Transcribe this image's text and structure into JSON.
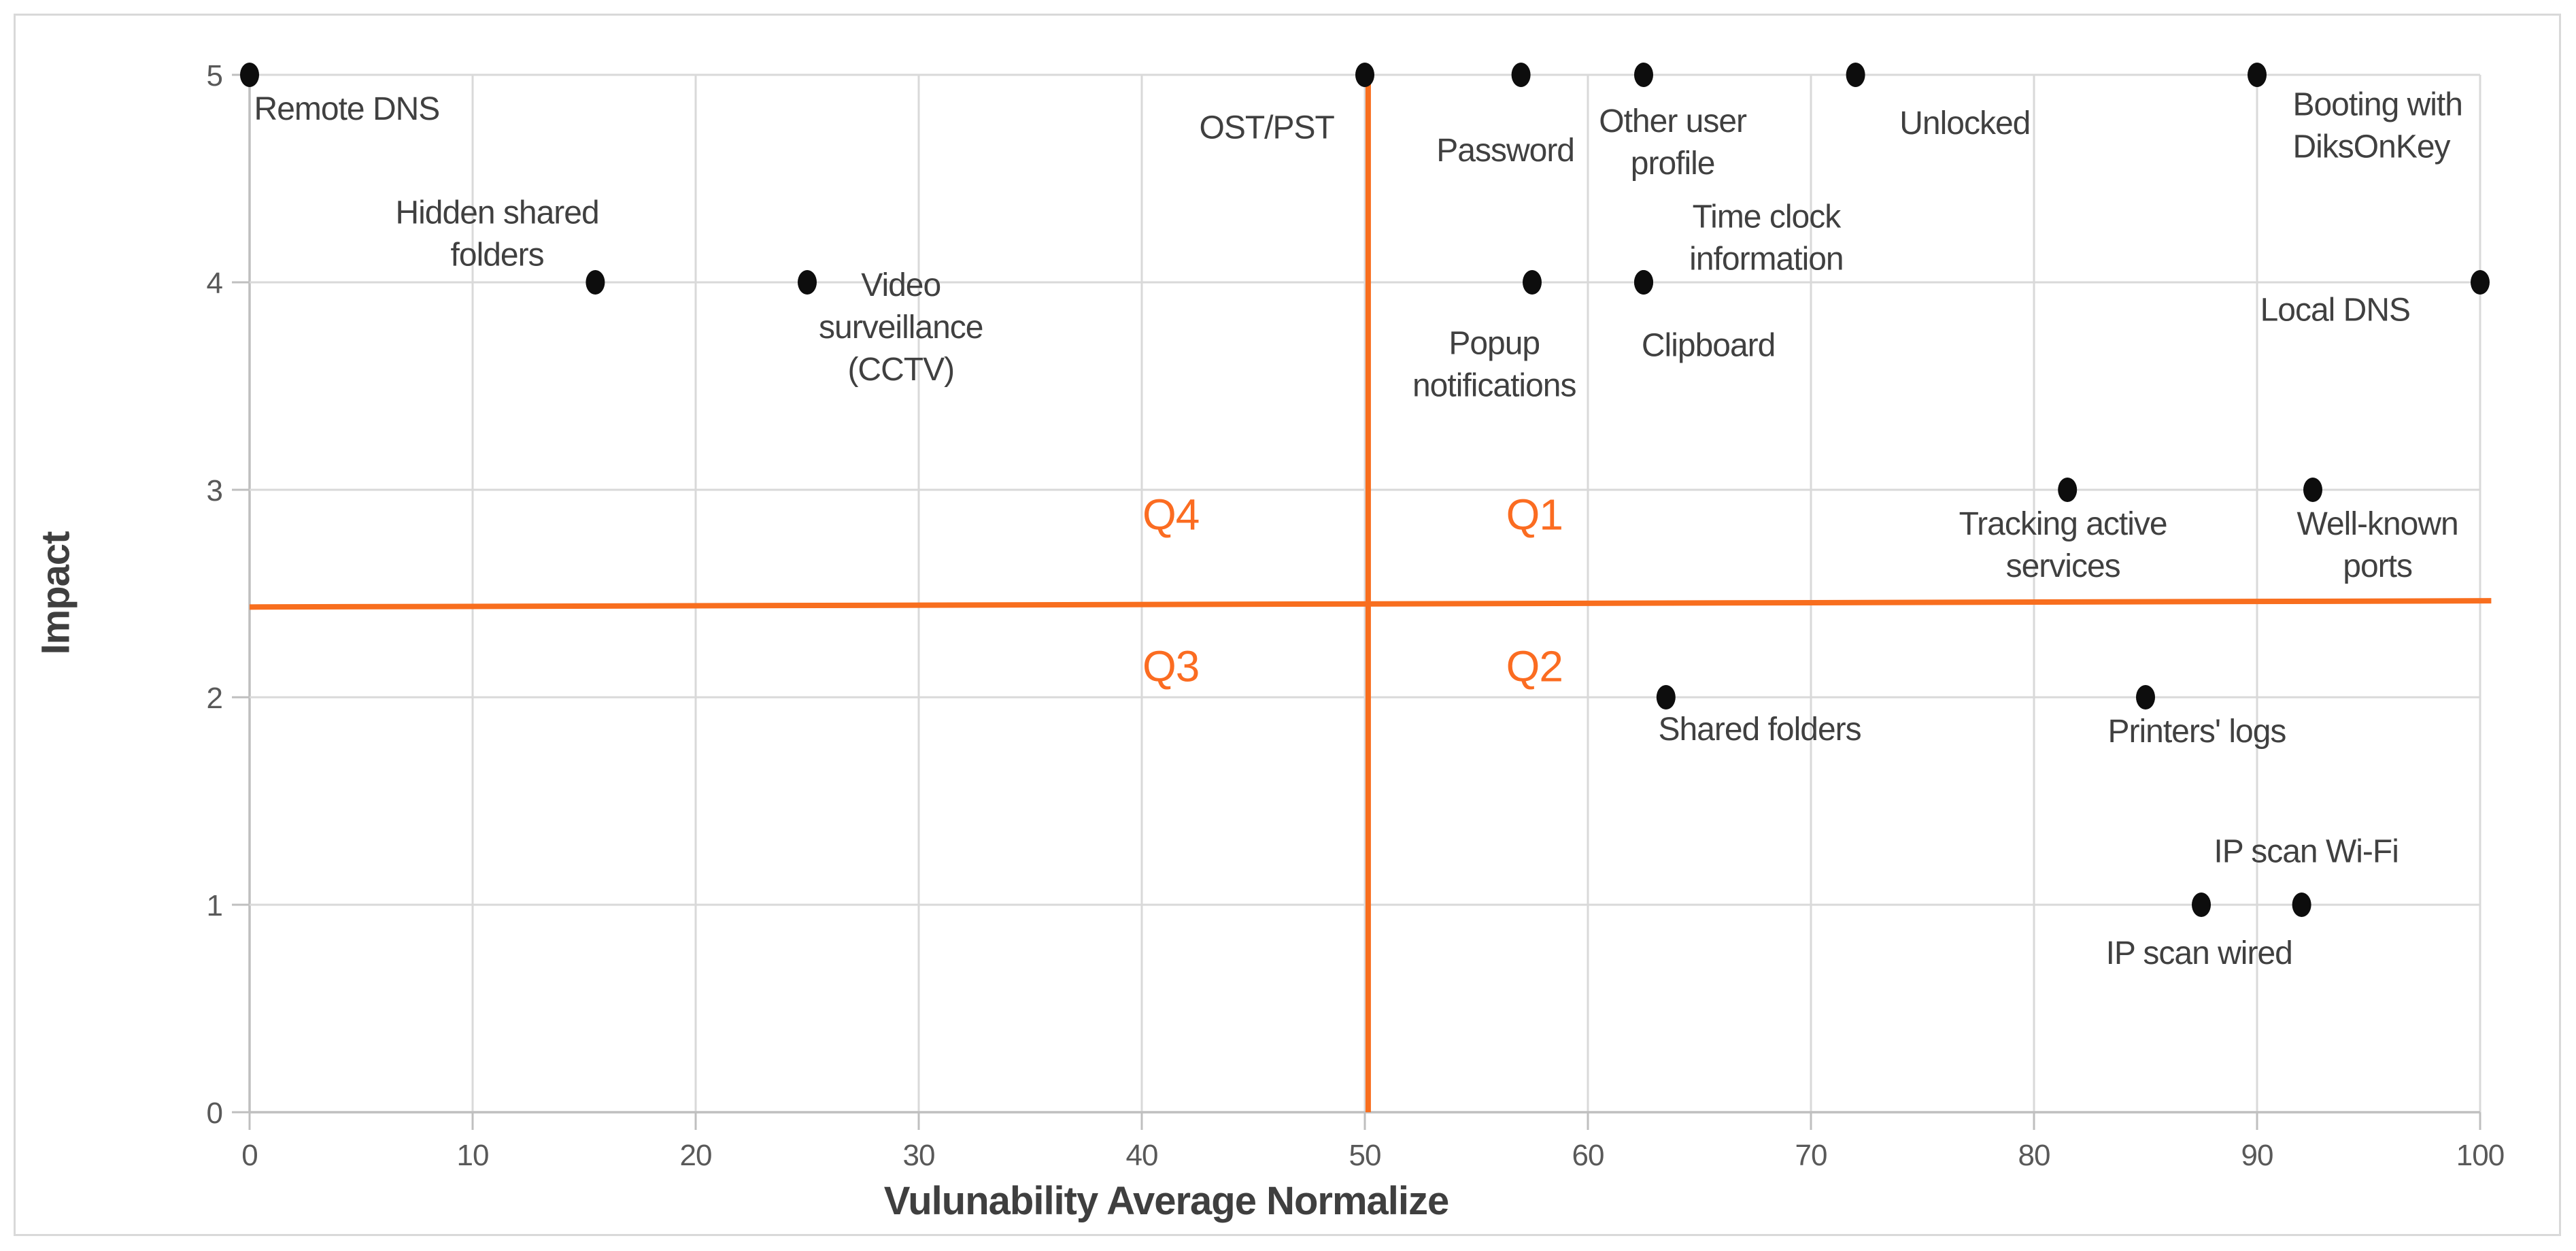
{
  "chart_data": {
    "type": "scatter",
    "title": "",
    "xlabel": "Vulunability Average Normalize",
    "ylabel": "Impact",
    "xlim": [
      0,
      100
    ],
    "ylim": [
      0,
      5
    ],
    "x_ticks": [
      "0",
      "10",
      "20",
      "30",
      "40",
      "50",
      "60",
      "70",
      "80",
      "90",
      "100"
    ],
    "y_ticks": [
      "0",
      "1",
      "2",
      "3",
      "4",
      "5"
    ],
    "grid": true,
    "legend": "none",
    "colors": {
      "marker": "#0d0d0d",
      "accent_orange": "#f86e1e",
      "quadrant_text": "#fb6c21",
      "gridline": "#d9d9d9",
      "axis_line": "#bfbfbf",
      "tick_text": "#595959",
      "label_text": "#404040"
    },
    "points": [
      {
        "name": "Remote DNS",
        "x": 0,
        "y": 5,
        "label": {
          "lines": [
            "Remote DNS"
          ],
          "x": 0.2,
          "y": 4.84,
          "align": "left"
        }
      },
      {
        "name": "OST/PST",
        "x": 50,
        "y": 5,
        "label": {
          "lines": [
            "OST/PST"
          ],
          "x": 45.6,
          "y": 4.75,
          "align": "center"
        }
      },
      {
        "name": "Password",
        "x": 57,
        "y": 5,
        "label": {
          "lines": [
            "Password"
          ],
          "x": 56.3,
          "y": 4.64,
          "align": "center"
        }
      },
      {
        "name": "Other user profile",
        "x": 62.5,
        "y": 5,
        "label": {
          "lines": [
            "Other user",
            "profile"
          ],
          "x": 63.8,
          "y": 4.78,
          "align": "center"
        }
      },
      {
        "name": "Unlocked",
        "x": 72,
        "y": 5,
        "label": {
          "lines": [
            "Unlocked"
          ],
          "x": 76.9,
          "y": 4.77,
          "align": "center"
        }
      },
      {
        "name": "Booting with DiksOnKey",
        "x": 90,
        "y": 5,
        "label": {
          "lines": [
            "Booting with",
            "DiksOnKey"
          ],
          "x": 91.6,
          "y": 4.86,
          "align": "left"
        }
      },
      {
        "name": "Hidden shared folders",
        "x": 15.5,
        "y": 4,
        "label": {
          "lines": [
            "Hidden shared",
            "folders"
          ],
          "x": 11.1,
          "y": 4.34,
          "align": "center"
        }
      },
      {
        "name": "Video surveillance (CCTV)",
        "x": 25,
        "y": 4,
        "label": {
          "lines": [
            "Video",
            "surveillance",
            "(CCTV)"
          ],
          "x": 29.2,
          "y": 3.99,
          "align": "center"
        }
      },
      {
        "name": "Time clock information",
        "x": 62.5,
        "y": 4,
        "label": {
          "lines": [
            "Time clock",
            "information"
          ],
          "x": 68.0,
          "y": 4.32,
          "align": "center"
        }
      },
      {
        "name": "Popup notifications",
        "x": 57.5,
        "y": 4,
        "label": {
          "lines": [
            "Popup",
            "notifications"
          ],
          "x": 55.8,
          "y": 3.71,
          "align": "center"
        }
      },
      {
        "name": "Clipboard",
        "x": 62.5,
        "y": 4,
        "label": {
          "lines": [
            "Clipboard"
          ],
          "x": 65.4,
          "y": 3.7,
          "align": "center"
        }
      },
      {
        "name": "Local DNS",
        "x": 100,
        "y": 4,
        "label": {
          "lines": [
            "Local DNS"
          ],
          "x": 93.5,
          "y": 3.87,
          "align": "center"
        }
      },
      {
        "name": "Tracking active services",
        "x": 81.5,
        "y": 3,
        "label": {
          "lines": [
            "Tracking active",
            "services"
          ],
          "x": 81.3,
          "y": 2.84,
          "align": "center"
        }
      },
      {
        "name": "Well-known ports",
        "x": 92.5,
        "y": 3,
        "label": {
          "lines": [
            "Well-known",
            "ports"
          ],
          "x": 95.4,
          "y": 2.84,
          "align": "center"
        }
      },
      {
        "name": "Shared folders",
        "x": 63.5,
        "y": 2,
        "label": {
          "lines": [
            "Shared folders"
          ],
          "x": 67.7,
          "y": 1.85,
          "align": "center"
        }
      },
      {
        "name": "Printers' logs",
        "x": 85,
        "y": 2,
        "label": {
          "lines": [
            "Printers' logs"
          ],
          "x": 87.3,
          "y": 1.84,
          "align": "center"
        }
      },
      {
        "name": "IP scan wired",
        "x": 87.5,
        "y": 1,
        "label": {
          "lines": [
            "IP scan wired"
          ],
          "x": 87.4,
          "y": 0.77,
          "align": "center"
        }
      },
      {
        "name": "IP scan Wi-Fi",
        "x": 92,
        "y": 1,
        "label": {
          "lines": [
            "IP scan Wi-Fi"
          ],
          "x": 92.2,
          "y": 1.26,
          "align": "center"
        }
      }
    ],
    "quadrant_labels": [
      {
        "text": "Q1",
        "x": 57.6,
        "y": 2.88
      },
      {
        "text": "Q2",
        "x": 57.6,
        "y": 2.15
      },
      {
        "text": "Q3",
        "x": 41.3,
        "y": 2.15
      },
      {
        "text": "Q4",
        "x": 41.3,
        "y": 2.88
      }
    ],
    "reference_lines": {
      "vertical": {
        "x": 50.15,
        "y1": 0,
        "y2": 4.99
      },
      "horizontal": {
        "x1": 0,
        "y1": 2.435,
        "x2": 100.5,
        "y2": 2.465
      }
    }
  }
}
